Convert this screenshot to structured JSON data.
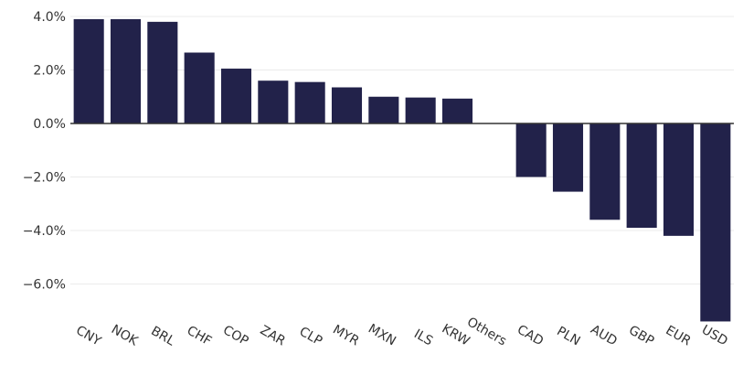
{
  "chart_data": {
    "type": "bar",
    "categories": [
      "CNY",
      "NOK",
      "BRL",
      "CHF",
      "COP",
      "ZAR",
      "CLP",
      "MYR",
      "MXN",
      "ILS",
      "KRW",
      "Others",
      "CAD",
      "PLN",
      "AUD",
      "GBP",
      "EUR",
      "USD"
    ],
    "values": [
      3.9,
      3.9,
      3.8,
      2.65,
      2.05,
      1.6,
      1.55,
      1.35,
      1.0,
      0.97,
      0.93,
      0.0,
      -2.0,
      -2.55,
      -3.6,
      -3.9,
      -4.2,
      -7.4
    ],
    "yticks": [
      4.0,
      2.0,
      0.0,
      -2.0,
      -4.0,
      -6.0
    ],
    "ytick_labels": [
      "4.0%",
      "2.0%",
      "0.0%",
      "−2.0%",
      "−4.0%",
      "−6.0%"
    ],
    "ylim": [
      -8.0,
      4.0
    ],
    "grid": true,
    "bar_color": "#22224a",
    "title": "",
    "xlabel": "",
    "ylabel": ""
  }
}
